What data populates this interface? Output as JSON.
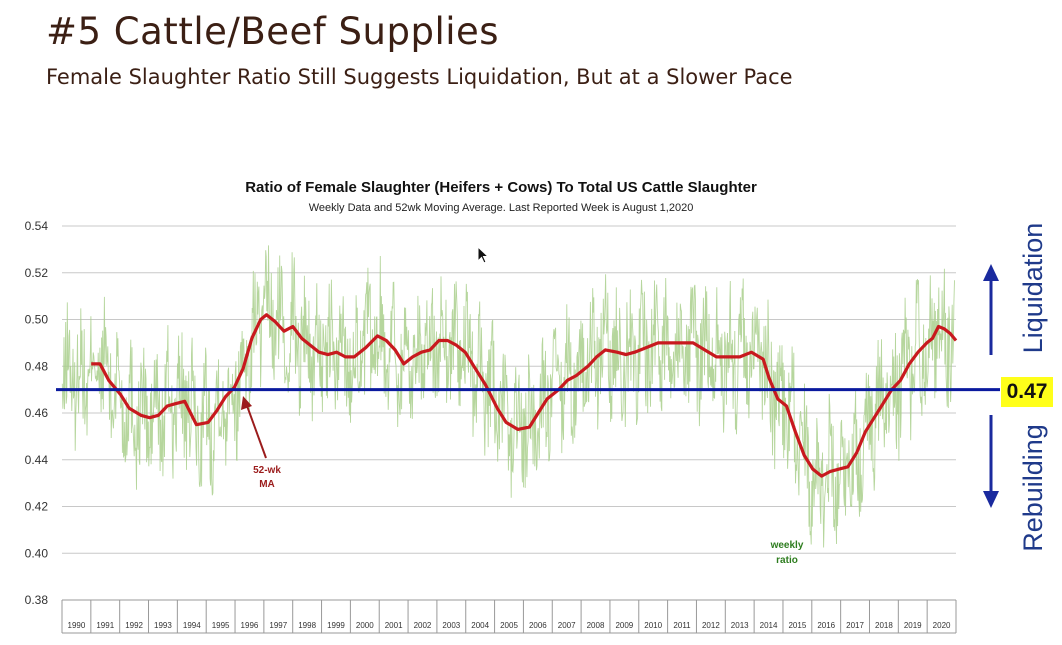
{
  "slide": {
    "title": "#5 Cattle/Beef Supplies",
    "subtitle": "Female Slaughter Ratio Still Suggests Liquidation, But at a Slower Pace"
  },
  "side_labels": {
    "liquidation": "Liquidation",
    "rebuilding": "Rebuilding",
    "threshold_label": "0.47"
  },
  "colors": {
    "weekly": "#a9cf8c",
    "moving_average": "#c8191e",
    "threshold": "#0a1a9e",
    "grid": "#c8c8c8",
    "arrow_blue": "#1a2a9e",
    "ma_annotation": "#9b1c1c",
    "weekly_annotation": "#2e7d1f",
    "callout_bg": "#ffff1a"
  },
  "icons": {
    "up_arrow": "arrow-up-icon",
    "down_arrow": "arrow-down-icon",
    "cursor": "mouse-pointer-icon"
  },
  "chart_data": {
    "type": "line",
    "title": "Ratio of Female Slaughter (Heifers + Cows) To Total US Cattle Slaughter",
    "subtitle": "Weekly Data and 52wk Moving Average.  Last Reported Week is  August 1,2020",
    "xlabel": "",
    "ylabel": "",
    "ylim": [
      0.38,
      0.54
    ],
    "y_ticks": [
      0.38,
      0.4,
      0.42,
      0.44,
      0.46,
      0.48,
      0.5,
      0.52,
      0.54
    ],
    "y_tick_labels": [
      "0.38",
      "0.40",
      "0.42",
      "0.44",
      "0.46",
      "0.48",
      "0.50",
      "0.52",
      "0.54"
    ],
    "grid": true,
    "x_categories": [
      "1990",
      "1991",
      "1992",
      "1993",
      "1994",
      "1995",
      "1996",
      "1997",
      "1998",
      "1999",
      "2000",
      "2001",
      "2002",
      "2003",
      "2004",
      "2005",
      "2006",
      "2007",
      "2008",
      "2009",
      "2010",
      "2011",
      "2012",
      "2013",
      "2014",
      "2015",
      "2016",
      "2017",
      "2018",
      "2019",
      "2020"
    ],
    "xlim": [
      1990.0,
      2020.6
    ],
    "threshold": {
      "value": 0.47
    },
    "annotations": {
      "moving_average": {
        "line1": "52-wk",
        "line2": "MA"
      },
      "weekly": {
        "line1": "weekly",
        "line2": "ratio"
      }
    },
    "series": [
      {
        "key": "moving_average",
        "x": [
          1991.0,
          1991.3,
          1991.6,
          1992.0,
          1992.3,
          1992.7,
          1993.0,
          1993.3,
          1993.6,
          1993.9,
          1994.2,
          1994.6,
          1995.0,
          1995.3,
          1995.6,
          1995.9,
          1996.2,
          1996.5,
          1996.8,
          1997.0,
          1997.3,
          1997.6,
          1997.9,
          1998.2,
          1998.5,
          1998.8,
          1999.1,
          1999.4,
          1999.7,
          2000.0,
          2000.4,
          2000.8,
          2001.1,
          2001.4,
          2001.7,
          2002.0,
          2002.3,
          2002.6,
          2002.9,
          2003.2,
          2003.5,
          2003.8,
          2004.1,
          2004.5,
          2004.9,
          2005.2,
          2005.6,
          2006.0,
          2006.3,
          2006.6,
          2007.0,
          2007.3,
          2007.6,
          2008.0,
          2008.3,
          2008.6,
          2009.0,
          2009.3,
          2009.6,
          2010.0,
          2010.4,
          2010.8,
          2011.2,
          2011.6,
          2012.0,
          2012.4,
          2012.8,
          2013.2,
          2013.6,
          2014.0,
          2014.2,
          2014.5,
          2014.8,
          2015.1,
          2015.4,
          2015.7,
          2016.0,
          2016.3,
          2016.6,
          2016.9,
          2017.2,
          2017.5,
          2017.8,
          2018.1,
          2018.4,
          2018.7,
          2019.0,
          2019.3,
          2019.6,
          2019.8,
          2020.0,
          2020.2,
          2020.4,
          2020.6
        ],
        "y": [
          0.481,
          0.481,
          0.474,
          0.468,
          0.462,
          0.459,
          0.458,
          0.459,
          0.463,
          0.464,
          0.465,
          0.455,
          0.456,
          0.461,
          0.467,
          0.471,
          0.479,
          0.492,
          0.5,
          0.502,
          0.499,
          0.495,
          0.497,
          0.492,
          0.489,
          0.486,
          0.485,
          0.486,
          0.484,
          0.484,
          0.488,
          0.493,
          0.491,
          0.487,
          0.481,
          0.484,
          0.486,
          0.487,
          0.491,
          0.491,
          0.489,
          0.486,
          0.48,
          0.472,
          0.462,
          0.456,
          0.453,
          0.454,
          0.46,
          0.466,
          0.47,
          0.474,
          0.476,
          0.48,
          0.484,
          0.487,
          0.486,
          0.485,
          0.486,
          0.488,
          0.49,
          0.49,
          0.49,
          0.49,
          0.487,
          0.484,
          0.484,
          0.484,
          0.486,
          0.483,
          0.475,
          0.466,
          0.463,
          0.452,
          0.442,
          0.436,
          0.433,
          0.435,
          0.436,
          0.437,
          0.443,
          0.452,
          0.458,
          0.464,
          0.47,
          0.474,
          0.481,
          0.486,
          0.49,
          0.492,
          0.497,
          0.496,
          0.494,
          0.491
        ]
      }
    ]
  }
}
